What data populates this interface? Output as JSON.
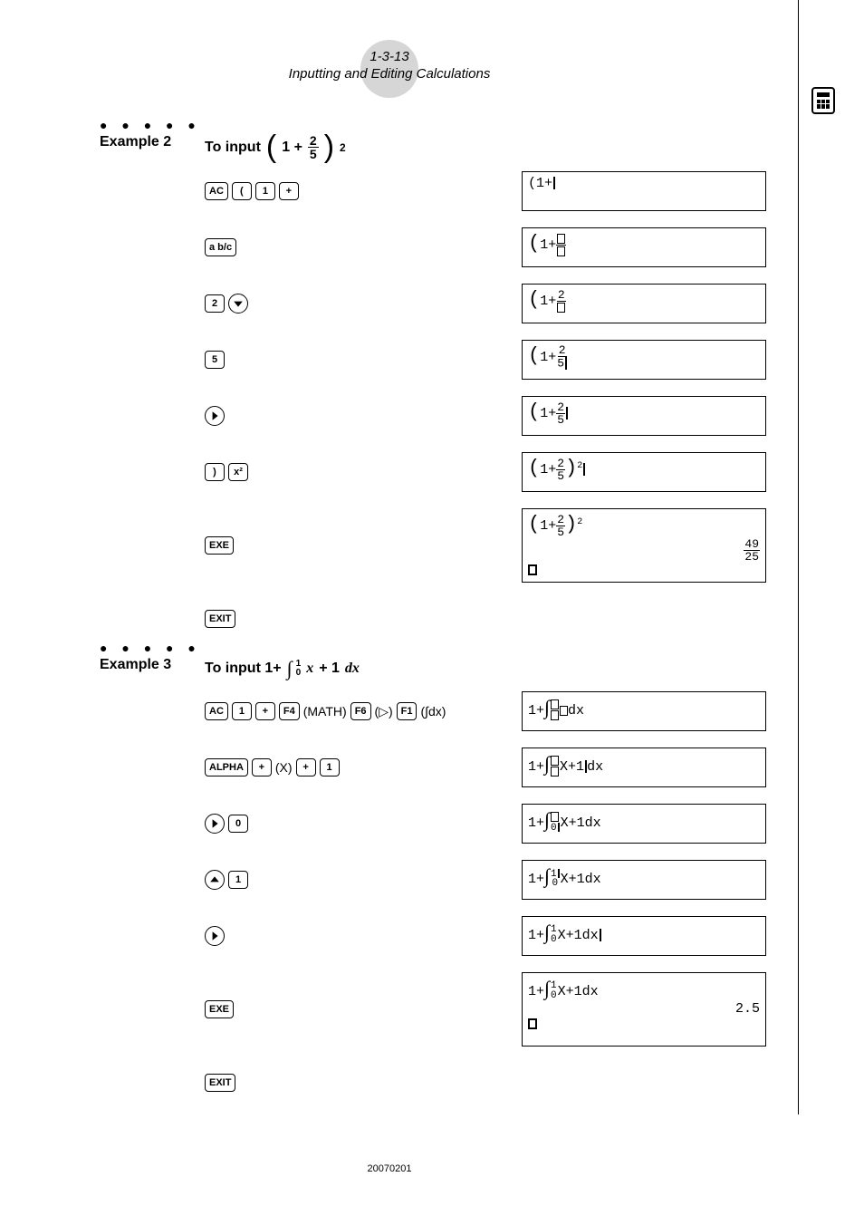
{
  "header": {
    "page_ref": "1-3-13",
    "title": "Inputting and Editing Calculations"
  },
  "footer": {
    "code": "20070201"
  },
  "examples": [
    {
      "label": "Example 2",
      "title_prefix": "To input ",
      "title_expr_html": "<span class='big-paren'>(</span>1 + <span class='fraction'><span class='num'>2</span><span class='den'>5</span></span><span class='big-paren'>)</span><span class='sup'>2</span>",
      "steps": [
        {
          "keys": [
            "AC",
            "(",
            "1",
            "+"
          ],
          "screen_html": "(1+<span class='cursor-block'></span>"
        },
        {
          "keys": [
            "a b/c"
          ],
          "screen_html": "<span style='font-size:22px'>(</span>1+<span class='mini-frac'><span class='n'><span class='box-ch'></span></span><span class='d'><span class='box-ch'></span></span></span>"
        },
        {
          "keys": [
            "2",
            "▼"
          ],
          "screen_html": "<span style='font-size:22px'>(</span>1+<span class='mini-frac'><span class='n'>2</span><span class='d'><span class='box-ch'></span></span></span>"
        },
        {
          "keys": [
            "5"
          ],
          "screen_html": "<span style='font-size:22px'>(</span>1+<span class='mini-frac'><span class='n'>2</span><span class='d'>5<span class='cursor-block'></span></span></span>"
        },
        {
          "keys": [
            "►"
          ],
          "screen_html": "<span style='font-size:22px'>(</span>1+<span class='mini-frac'><span class='n'>2</span><span class='d'>5</span></span><span class='cursor-block'></span>"
        },
        {
          "keys": [
            ")",
            "x²"
          ],
          "screen_html": "<span style='font-size:22px'>(</span>1+<span class='mini-frac'><span class='n'>2</span><span class='d'>5</span></span><span style='font-size:22px'>)</span><sup style='font-size:10px;'>2</sup><span class='cursor-block'></span>"
        },
        {
          "keys": [
            "EXE"
          ],
          "tall": true,
          "screen_html": "<span style='font-size:22px'>(</span>1+<span class='mini-frac'><span class='n'>2</span><span class='d'>5</span></span><span style='font-size:22px'>)</span><sup style='font-size:10px;'>2</sup>",
          "result_html": "<span class='mini-frac'><span class='n'>49</span><span class='d'>25</span></span>",
          "bottom_cursor": true
        }
      ],
      "after_keys": [
        "EXIT"
      ]
    },
    {
      "label": "Example 3",
      "title_prefix": "To input  1+ ",
      "title_expr_html": "<span class='integral'>∫</span><span class='int-bounds'><span>1</span><span>0</span></span> <span style='font-style:italic;font-family:serif'>x</span> + 1<span style='font-style:italic;font-family:serif'>dx</span>",
      "steps": [
        {
          "keys": [
            "AC",
            "1",
            "+",
            "F4"
          ],
          "key_suffix_text": "(MATH)",
          "keys2": [
            "F6"
          ],
          "key_suffix_text2": "(▷)",
          "keys3": [
            "F1"
          ],
          "key_suffix_text3": "(∫dx)",
          "screen_html": "1+<span class='integral'>∫</span><span class='mini-frac' style='font-size:11px'><span class='n' style='border:none'><span class='box-ch'></span></span><span class='d'><span class='box-ch'></span></span></span><span class='box-ch'></span>dx"
        },
        {
          "keys": [
            "ALPHA",
            "+"
          ],
          "key_suffix_text": "(X)",
          "keys2": [
            "+",
            "1"
          ],
          "screen_html": "1+<span class='integral'>∫</span><span class='mini-frac' style='font-size:11px'><span class='n' style='border:none'><span class='box-ch'></span></span><span class='d'><span class='box-ch'></span></span></span>X+1<span class='cursor-block'></span>dx"
        },
        {
          "keys": [
            "►",
            "0"
          ],
          "screen_html": "1+<span class='integral'>∫</span><span class='mini-frac' style='font-size:11px'><span class='n' style='border:none'><span class='box-ch'></span></span><span class='d'>0<span class='cursor-block' style='height:10px'></span></span></span>X+1dx"
        },
        {
          "keys": [
            "▲",
            "1"
          ],
          "screen_html": "1+<span class='integral'>∫</span><span class='mini-frac' style='font-size:11px'><span class='n' style='border:none'>1<span class='cursor-block' style='height:10px'></span></span><span class='d'>0</span></span>X+1dx"
        },
        {
          "keys": [
            "►"
          ],
          "screen_html": "1+<span class='integral'>∫</span><span class='mini-frac' style='font-size:11px'><span class='n' style='border:none'>1</span><span class='d'>0</span></span>X+1dx<span class='cursor-block'></span>"
        },
        {
          "keys": [
            "EXE"
          ],
          "tall": true,
          "screen_html": "1+<span class='integral'>∫</span><span class='mini-frac' style='font-size:11px'><span class='n' style='border:none'>1</span><span class='d'>0</span></span>X+1dx",
          "result_html": "2.5",
          "bottom_cursor": true
        }
      ],
      "after_keys": [
        "EXIT"
      ]
    }
  ],
  "key_styles": {
    "AC": {
      "label": "AC"
    },
    "(": {
      "label": "("
    },
    ")": {
      "label": ")"
    },
    "1": {
      "label": "1"
    },
    "2": {
      "label": "2"
    },
    "5": {
      "label": "5"
    },
    "0": {
      "label": "0"
    },
    "+": {
      "label": "+"
    },
    "a b/c": {
      "label": "a b/c",
      "wide": true
    },
    "x²": {
      "label": "x²"
    },
    "EXE": {
      "label": "EXE"
    },
    "EXIT": {
      "label": "EXIT"
    },
    "F1": {
      "label": "F1"
    },
    "F4": {
      "label": "F4"
    },
    "F6": {
      "label": "F6"
    },
    "ALPHA": {
      "label": "ALPHA",
      "wide": true
    },
    "▼": {
      "arrow": "down",
      "round": true
    },
    "▲": {
      "arrow": "up",
      "round": true
    },
    "►": {
      "arrow": "right",
      "round": true
    }
  },
  "colors": {
    "page_bg": "#ffffff",
    "text": "#000000",
    "header_circle": "#d6d6d6"
  }
}
